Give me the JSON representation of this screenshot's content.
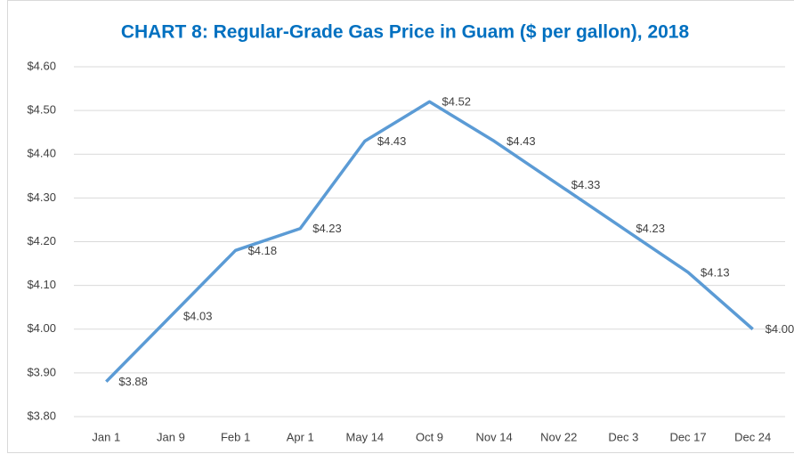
{
  "chart_data": {
    "type": "line",
    "title": "CHART 8: Regular-Grade Gas Price in Guam ($ per gallon), 2018",
    "categories": [
      "Jan 1",
      "Jan 9",
      "Feb 1",
      "Apr 1",
      "May 14",
      "Oct 9",
      "Nov 14",
      "Nov 22",
      "Dec 3",
      "Dec 17",
      "Dec 24"
    ],
    "series": [
      {
        "name": "Regular-Grade Gas Price",
        "color": "#5b9bd5",
        "values": [
          3.88,
          4.03,
          4.18,
          4.23,
          4.43,
          4.52,
          4.43,
          4.33,
          4.23,
          4.13,
          4.0
        ],
        "value_labels": [
          "$3.88",
          "$4.03",
          "$4.18",
          "$4.23",
          "$4.43",
          "$4.52",
          "$4.43",
          "$4.33",
          "$4.23",
          "$4.13",
          "$4.00"
        ]
      }
    ],
    "ylim": [
      3.8,
      4.6
    ],
    "yticks": [
      {
        "value": 3.8,
        "label": "$3.80"
      },
      {
        "value": 3.9,
        "label": "$3.90"
      },
      {
        "value": 4.0,
        "label": "$4.00"
      },
      {
        "value": 4.1,
        "label": "$4.10"
      },
      {
        "value": 4.2,
        "label": "$4.20"
      },
      {
        "value": 4.3,
        "label": "$4.30"
      },
      {
        "value": 4.4,
        "label": "$4.40"
      },
      {
        "value": 4.5,
        "label": "$4.50"
      },
      {
        "value": 4.6,
        "label": "$4.60"
      }
    ],
    "grid": true
  }
}
